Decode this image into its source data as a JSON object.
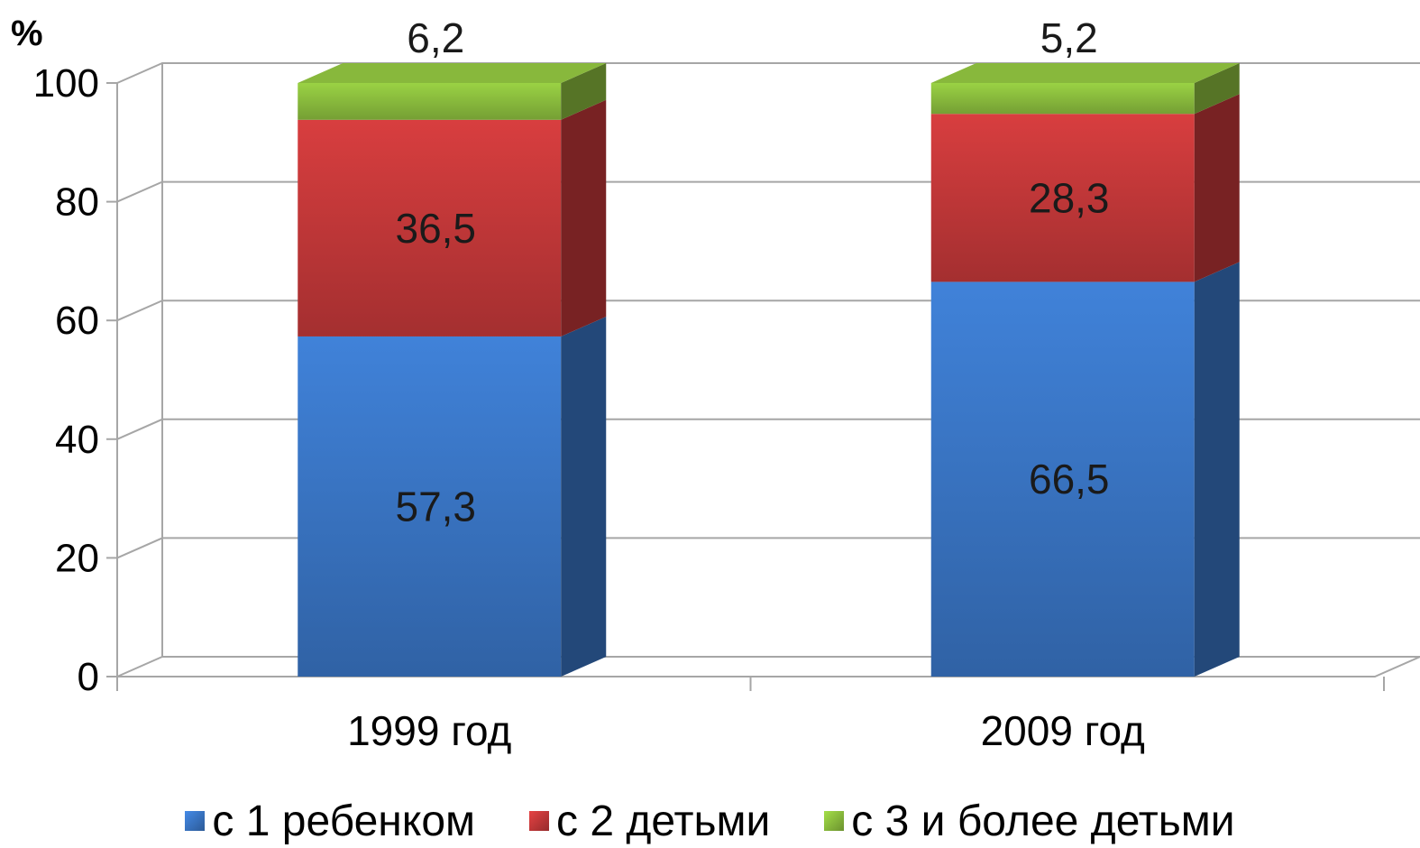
{
  "chart_data": {
    "type": "bar",
    "stacked": true,
    "unit_label": "%",
    "categories": [
      "1999 год",
      "2009 год"
    ],
    "series": [
      {
        "name": "с 1 ребенком",
        "values": [
          57.3,
          66.5
        ],
        "labels": [
          "57,3",
          "66,5"
        ],
        "color": "#3b78c9"
      },
      {
        "name": "с 2 детьми",
        "values": [
          36.5,
          28.3
        ],
        "labels": [
          "36,5",
          "28,3"
        ],
        "color": "#c8393a"
      },
      {
        "name": "с 3 и более детьми",
        "values": [
          6.2,
          5.2
        ],
        "labels": [
          "6,2",
          "5,2"
        ],
        "color": "#8fc23f"
      }
    ],
    "yticks": [
      "0",
      "20",
      "40",
      "60",
      "80",
      "100"
    ],
    "ylim": [
      0,
      100
    ],
    "grid": true,
    "legend_position": "bottom"
  }
}
